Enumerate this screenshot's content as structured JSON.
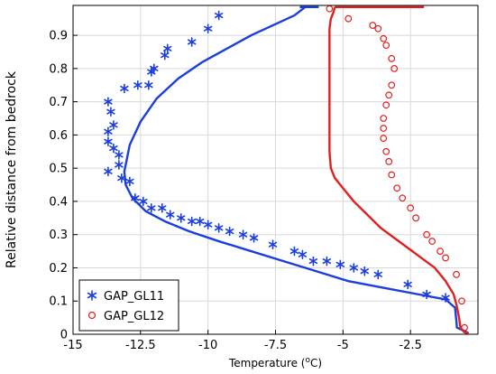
{
  "chart_data": {
    "type": "scatter",
    "title": "",
    "xlabel_main": "Temperature (",
    "xlabel_sup": "o",
    "xlabel_tail": "C)",
    "ylabel": "Relative distance from bedrock",
    "xlim": [
      -15,
      0
    ],
    "ylim": [
      0,
      0.99
    ],
    "xticks": [
      -15,
      -12.5,
      -10,
      -7.5,
      -5,
      -2.5
    ],
    "xtick_labels": [
      "-15",
      "-12.5",
      "-10",
      "-7.5",
      "-5",
      "-2.5"
    ],
    "yticks": [
      0,
      0.1,
      0.2,
      0.3,
      0.4,
      0.5,
      0.6,
      0.7,
      0.8,
      0.9
    ],
    "ytick_labels": [
      "0",
      "0.1",
      "0.2",
      "0.3",
      "0.4",
      "0.5",
      "0.6",
      "0.7",
      "0.8",
      "0.9"
    ],
    "grid": true,
    "legend_position": "bottom-left",
    "series": [
      {
        "name": "GAP_GL11",
        "kind": "points",
        "marker": "asterisk",
        "color": "#1a3ee0",
        "x": [
          -9.6,
          -10.0,
          -10.6,
          -11.5,
          -11.6,
          -12.0,
          -12.1,
          -12.6,
          -13.1,
          -12.2,
          -13.7,
          -13.6,
          -13.5,
          -13.7,
          -13.7,
          -13.5,
          -13.3,
          -13.3,
          -13.7,
          -13.2,
          -12.9,
          -12.7,
          -12.4,
          -12.1,
          -11.7,
          -11.4,
          -11.0,
          -10.6,
          -10.3,
          -10.0,
          -9.6,
          -9.2,
          -8.7,
          -8.3,
          -7.6,
          -6.8,
          -6.5,
          -6.1,
          -5.6,
          -5.1,
          -4.6,
          -4.2,
          -3.7,
          -2.6,
          -1.9,
          -1.2
        ],
        "y": [
          0.96,
          0.92,
          0.88,
          0.86,
          0.84,
          0.8,
          0.79,
          0.75,
          0.74,
          0.75,
          0.7,
          0.67,
          0.63,
          0.61,
          0.58,
          0.56,
          0.54,
          0.51,
          0.49,
          0.47,
          0.46,
          0.41,
          0.4,
          0.38,
          0.38,
          0.36,
          0.35,
          0.34,
          0.34,
          0.33,
          0.32,
          0.31,
          0.3,
          0.29,
          0.27,
          0.25,
          0.24,
          0.22,
          0.22,
          0.21,
          0.2,
          0.19,
          0.18,
          0.15,
          0.12,
          0.11
        ]
      },
      {
        "name": "GAP_GL12",
        "kind": "points",
        "marker": "circle",
        "color": "#e02020",
        "x": [
          -5.5,
          -4.8,
          -3.9,
          -3.7,
          -3.5,
          -3.4,
          -3.2,
          -3.1,
          -3.2,
          -3.3,
          -3.4,
          -3.5,
          -3.5,
          -3.5,
          -3.4,
          -3.3,
          -3.2,
          -3.0,
          -2.8,
          -2.5,
          -2.3,
          -1.9,
          -1.7,
          -1.4,
          -1.2,
          -0.8,
          -0.6,
          -0.5
        ],
        "y": [
          0.98,
          0.95,
          0.93,
          0.92,
          0.89,
          0.87,
          0.83,
          0.8,
          0.75,
          0.72,
          0.69,
          0.65,
          0.62,
          0.59,
          0.55,
          0.52,
          0.48,
          0.44,
          0.41,
          0.38,
          0.35,
          0.3,
          0.28,
          0.25,
          0.23,
          0.18,
          0.1,
          0.02
        ]
      },
      {
        "name": "",
        "kind": "line",
        "color": "#1a3ee0",
        "x": [
          -6.4,
          -6.8,
          -7.6,
          -8.4,
          -9.3,
          -10.2,
          -11.1,
          -11.9,
          -12.5,
          -12.9,
          -13.1,
          -13.05,
          -12.8,
          -12.3,
          -11.6,
          -10.7,
          -9.6,
          -8.4,
          -7.2,
          -6.0,
          -4.8,
          -3.5,
          -2.2,
          -1.2,
          -0.85,
          -0.8,
          -0.78,
          -0.45,
          -0.35
        ],
        "y": [
          0.985,
          0.96,
          0.93,
          0.9,
          0.86,
          0.82,
          0.77,
          0.71,
          0.64,
          0.57,
          0.49,
          0.45,
          0.41,
          0.37,
          0.34,
          0.31,
          0.28,
          0.25,
          0.22,
          0.19,
          0.16,
          0.14,
          0.12,
          0.105,
          0.08,
          0.04,
          0.02,
          0.008,
          0.003
        ]
      },
      {
        "name": "",
        "kind": "line",
        "color": "#e02020",
        "x": [
          -5.3,
          -5.35,
          -5.45,
          -5.5,
          -5.5,
          -5.5,
          -5.5,
          -5.5,
          -5.45,
          -5.3,
          -5.0,
          -4.6,
          -4.1,
          -3.6,
          -3.1,
          -2.6,
          -2.1,
          -1.6,
          -1.2,
          -0.9,
          -0.8,
          -0.7,
          -0.65,
          -0.5,
          -0.35
        ],
        "y": [
          0.985,
          0.97,
          0.95,
          0.92,
          0.85,
          0.75,
          0.65,
          0.55,
          0.5,
          0.47,
          0.44,
          0.4,
          0.36,
          0.32,
          0.29,
          0.26,
          0.23,
          0.2,
          0.16,
          0.12,
          0.09,
          0.05,
          0.02,
          0.006,
          0.003
        ]
      },
      {
        "name": "",
        "kind": "line",
        "color": "#1a3ee0",
        "x": [
          -6.6,
          -5.9
        ],
        "y": [
          0.985,
          0.985
        ]
      },
      {
        "name": "",
        "kind": "line",
        "color": "#e02020",
        "x": [
          -5.3,
          -2.0
        ],
        "y": [
          0.985,
          0.985
        ]
      }
    ]
  }
}
